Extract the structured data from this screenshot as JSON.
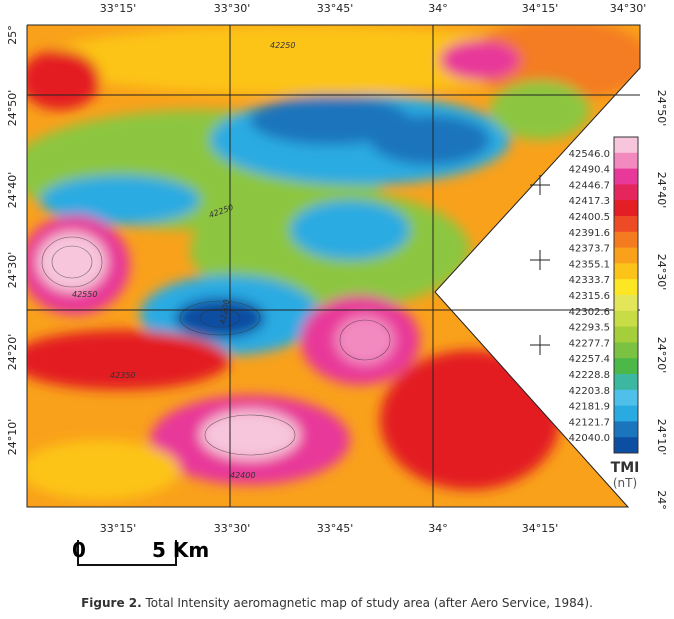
{
  "top_labels": [
    "33°15'",
    "33°30'",
    "33°45'",
    "34°",
    "34°15'",
    "34°30'"
  ],
  "bottom_labels": [
    "33°15'",
    "33°30'",
    "33°45'",
    "34°",
    "34°15'"
  ],
  "left_labels": [
    "25°",
    "24°50'",
    "24°40'",
    "24°30'",
    "24°20'",
    "24°10'"
  ],
  "right_labels": [
    "24°50'",
    "24°40'",
    "24°30'",
    "24°20'",
    "24°10'",
    "24°"
  ],
  "legend": {
    "values": [
      "42546.0",
      "42490.4",
      "42446.7",
      "42417.3",
      "42400.5",
      "42391.6",
      "42373.7",
      "42355.1",
      "42333.7",
      "42315.6",
      "42302.6",
      "42293.5",
      "42277.7",
      "42257.4",
      "42228.8",
      "42203.8",
      "42181.9",
      "42121.7",
      "42040.0"
    ],
    "title": "TMI",
    "unit": "(nT)"
  },
  "contour_labels": [
    "42250",
    "42550",
    "42200",
    "42350",
    "42400",
    "42250"
  ],
  "scale_bar": {
    "start": "0",
    "end": "5 Km"
  },
  "caption": {
    "label": "Figure 2.",
    "text": "Total Intensity aeromagnetic map of study area (after Aero Service, 1984)."
  }
}
